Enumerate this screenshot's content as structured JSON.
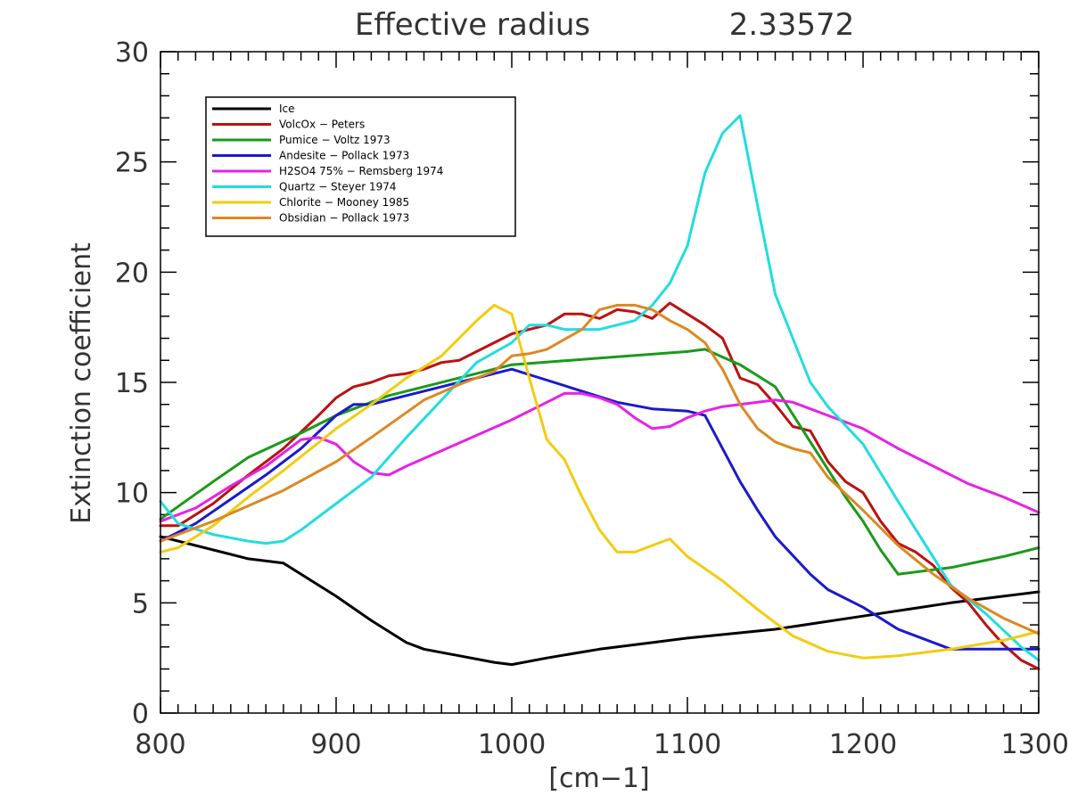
{
  "chart_data": {
    "type": "line",
    "title": "Effective radius",
    "title_value": "2.33572",
    "xlabel": "[cm−1]",
    "ylabel": "Extinction coefficient",
    "xlim": [
      800,
      1300
    ],
    "ylim": [
      0,
      30
    ],
    "x_ticks": [
      800,
      900,
      1000,
      1100,
      1200,
      1300
    ],
    "x_tick_labels": [
      "800",
      "900",
      "1000",
      "1100",
      "1200",
      "1300"
    ],
    "y_ticks": [
      0,
      5,
      10,
      15,
      20,
      25,
      30
    ],
    "y_tick_labels": [
      "0",
      "5",
      "10",
      "15",
      "20",
      "25",
      "30"
    ],
    "grid": false,
    "legend_position": "top-left",
    "series": [
      {
        "name": "Ice",
        "color": "#000000",
        "x": [
          800,
          820,
          850,
          870,
          900,
          920,
          940,
          950,
          970,
          990,
          1000,
          1020,
          1050,
          1080,
          1100,
          1150,
          1200,
          1250,
          1280,
          1300
        ],
        "y": [
          8.0,
          7.6,
          7.0,
          6.8,
          5.3,
          4.2,
          3.2,
          2.9,
          2.6,
          2.3,
          2.2,
          2.5,
          2.9,
          3.2,
          3.4,
          3.8,
          4.4,
          5.0,
          5.3,
          5.5
        ]
      },
      {
        "name": "VolcOx − Peters",
        "color": "#bb1111",
        "x": [
          800,
          810,
          830,
          850,
          870,
          890,
          900,
          910,
          920,
          930,
          940,
          950,
          960,
          970,
          980,
          990,
          1000,
          1010,
          1020,
          1030,
          1040,
          1050,
          1060,
          1070,
          1080,
          1090,
          1100,
          1110,
          1120,
          1130,
          1140,
          1150,
          1160,
          1170,
          1180,
          1190,
          1200,
          1210,
          1220,
          1230,
          1240,
          1250,
          1260,
          1270,
          1280,
          1290,
          1300
        ],
        "y": [
          8.5,
          8.5,
          9.5,
          10.8,
          12.0,
          13.5,
          14.3,
          14.8,
          15.0,
          15.3,
          15.4,
          15.6,
          15.9,
          16.0,
          16.4,
          16.8,
          17.2,
          17.4,
          17.6,
          18.1,
          18.1,
          17.9,
          18.3,
          18.2,
          17.9,
          18.6,
          18.1,
          17.6,
          17.0,
          15.2,
          14.9,
          14.0,
          13.0,
          12.8,
          11.4,
          10.5,
          10.0,
          8.7,
          7.7,
          7.3,
          6.7,
          5.7,
          5.0,
          4.0,
          3.1,
          2.4,
          2.0
        ]
      },
      {
        "name": "Pumice − Voltz 1973",
        "color": "#1a9a1a",
        "x": [
          800,
          830,
          850,
          880,
          900,
          930,
          950,
          980,
          1000,
          1050,
          1100,
          1110,
          1130,
          1150,
          1170,
          1190,
          1200,
          1210,
          1220,
          1250,
          1280,
          1300
        ],
        "y": [
          8.8,
          10.5,
          11.6,
          12.7,
          13.5,
          14.4,
          14.8,
          15.4,
          15.8,
          16.1,
          16.4,
          16.5,
          15.8,
          14.8,
          12.3,
          9.8,
          8.7,
          7.4,
          6.3,
          6.6,
          7.1,
          7.5
        ]
      },
      {
        "name": "Andesite − Pollack 1973",
        "color": "#1a1acc",
        "x": [
          800,
          820,
          840,
          860,
          880,
          900,
          910,
          920,
          940,
          960,
          980,
          1000,
          1020,
          1040,
          1060,
          1080,
          1100,
          1110,
          1120,
          1130,
          1140,
          1150,
          1170,
          1180,
          1200,
          1220,
          1250,
          1280,
          1300
        ],
        "y": [
          7.8,
          8.6,
          9.7,
          10.8,
          12.0,
          13.5,
          14.0,
          14.0,
          14.4,
          14.8,
          15.2,
          15.6,
          15.1,
          14.6,
          14.1,
          13.8,
          13.7,
          13.5,
          12.0,
          10.5,
          9.2,
          8.0,
          6.3,
          5.6,
          4.8,
          3.8,
          2.9,
          2.9,
          2.9
        ]
      },
      {
        "name": "H2SO4 75% − Remsberg 1974",
        "color": "#e622e6",
        "x": [
          800,
          820,
          840,
          860,
          880,
          890,
          900,
          910,
          920,
          930,
          940,
          960,
          980,
          1000,
          1020,
          1030,
          1040,
          1050,
          1060,
          1070,
          1080,
          1090,
          1100,
          1110,
          1120,
          1130,
          1140,
          1150,
          1160,
          1170,
          1180,
          1200,
          1220,
          1240,
          1260,
          1280,
          1300
        ],
        "y": [
          8.7,
          9.3,
          10.3,
          11.2,
          12.4,
          12.5,
          12.2,
          11.4,
          10.9,
          10.8,
          11.2,
          11.9,
          12.6,
          13.3,
          14.1,
          14.5,
          14.5,
          14.3,
          14.0,
          13.4,
          12.9,
          13.0,
          13.4,
          13.7,
          13.9,
          14.0,
          14.1,
          14.2,
          14.1,
          13.8,
          13.5,
          12.9,
          12.0,
          11.2,
          10.4,
          9.8,
          9.1
        ]
      },
      {
        "name": "Quartz − Steyer 1974",
        "color": "#22dddd",
        "x": [
          800,
          810,
          830,
          850,
          860,
          870,
          880,
          900,
          920,
          940,
          960,
          980,
          1000,
          1010,
          1020,
          1030,
          1050,
          1070,
          1080,
          1090,
          1100,
          1110,
          1120,
          1130,
          1140,
          1150,
          1160,
          1170,
          1180,
          1200,
          1220,
          1250,
          1270,
          1290,
          1300
        ],
        "y": [
          9.6,
          8.6,
          8.1,
          7.8,
          7.7,
          7.8,
          8.3,
          9.5,
          10.7,
          12.5,
          14.2,
          15.9,
          16.8,
          17.6,
          17.6,
          17.4,
          17.4,
          17.8,
          18.5,
          19.5,
          21.2,
          24.5,
          26.3,
          27.1,
          23.0,
          19.0,
          17.0,
          15.0,
          13.9,
          12.2,
          9.6,
          5.8,
          4.5,
          3.0,
          2.4
        ]
      },
      {
        "name": "Chlorite − Mooney 1985",
        "color": "#f2cc11",
        "x": [
          800,
          810,
          830,
          850,
          870,
          900,
          920,
          940,
          960,
          980,
          990,
          1000,
          1010,
          1020,
          1030,
          1040,
          1050,
          1060,
          1070,
          1080,
          1090,
          1100,
          1120,
          1140,
          1160,
          1180,
          1200,
          1220,
          1250,
          1280,
          1300
        ],
        "y": [
          7.3,
          7.5,
          8.5,
          9.8,
          11.0,
          12.9,
          14.0,
          15.2,
          16.2,
          17.8,
          18.5,
          18.1,
          15.2,
          12.4,
          11.5,
          9.8,
          8.3,
          7.3,
          7.3,
          7.6,
          7.9,
          7.1,
          6.0,
          4.7,
          3.5,
          2.8,
          2.5,
          2.6,
          2.9,
          3.3,
          3.7
        ]
      },
      {
        "name": "Obsidian − Pollack 1973",
        "color": "#dd8822",
        "x": [
          800,
          830,
          850,
          870,
          900,
          920,
          950,
          970,
          990,
          1000,
          1010,
          1020,
          1040,
          1050,
          1060,
          1070,
          1080,
          1090,
          1100,
          1110,
          1120,
          1130,
          1140,
          1150,
          1160,
          1170,
          1180,
          1200,
          1220,
          1240,
          1260,
          1280,
          1300
        ],
        "y": [
          7.8,
          8.7,
          9.4,
          10.1,
          11.4,
          12.5,
          14.2,
          14.9,
          15.5,
          16.2,
          16.3,
          16.5,
          17.4,
          18.3,
          18.5,
          18.5,
          18.3,
          17.8,
          17.4,
          16.8,
          15.6,
          14.0,
          12.9,
          12.3,
          12.0,
          11.8,
          10.7,
          9.2,
          7.6,
          6.3,
          5.2,
          4.3,
          3.6
        ]
      }
    ]
  }
}
